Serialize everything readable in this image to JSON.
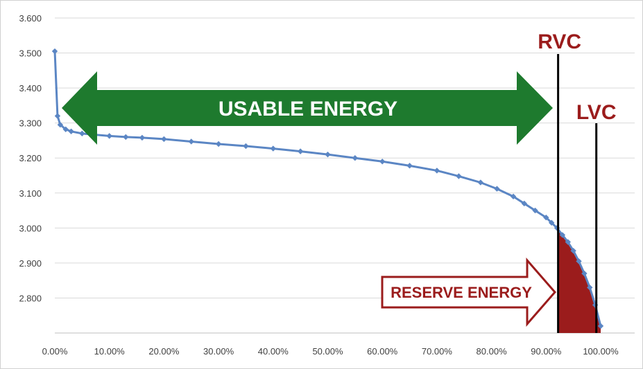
{
  "chart_data": {
    "type": "line",
    "title": "",
    "xlabel": "",
    "ylabel": "",
    "xlim": [
      0,
      100
    ],
    "ylim": [
      2.7,
      3.6
    ],
    "grid": true,
    "x_ticks": [
      "0.00%",
      "10.00%",
      "20.00%",
      "30.00%",
      "40.00%",
      "50.00%",
      "60.00%",
      "70.00%",
      "80.00%",
      "90.00%",
      "100.00%"
    ],
    "y_ticks": [
      "2.800",
      "2.900",
      "3.000",
      "3.100",
      "3.200",
      "3.300",
      "3.400",
      "3.500",
      "3.600"
    ],
    "series": [
      {
        "color": "#5b86c4",
        "x": [
          0,
          0.5,
          1,
          2,
          3,
          5,
          7,
          10,
          13,
          16,
          20,
          25,
          30,
          35,
          40,
          45,
          50,
          55,
          60,
          65,
          70,
          74,
          78,
          81,
          84,
          86,
          88,
          90,
          91,
          92,
          93,
          94,
          95,
          96,
          97,
          98,
          99,
          100
        ],
        "y": [
          3.505,
          3.32,
          3.295,
          3.282,
          3.276,
          3.27,
          3.267,
          3.263,
          3.26,
          3.258,
          3.254,
          3.247,
          3.24,
          3.234,
          3.227,
          3.219,
          3.21,
          3.2,
          3.19,
          3.178,
          3.164,
          3.148,
          3.13,
          3.112,
          3.09,
          3.07,
          3.05,
          3.03,
          3.015,
          3.0,
          2.98,
          2.96,
          2.935,
          2.905,
          2.87,
          2.83,
          2.78,
          2.72
        ]
      }
    ],
    "rvc": {
      "label": "RVC",
      "x": 92.2,
      "color": "#9b1c1c"
    },
    "lvc": {
      "label": "LVC",
      "x": 99.2,
      "color": "#9b1c1c"
    },
    "usable_energy": {
      "label": "USABLE ENERGY",
      "color": "#1e7a2e"
    },
    "reserve_energy": {
      "label": "RESERVE ENERGY",
      "color": "#9b1c1c"
    }
  }
}
